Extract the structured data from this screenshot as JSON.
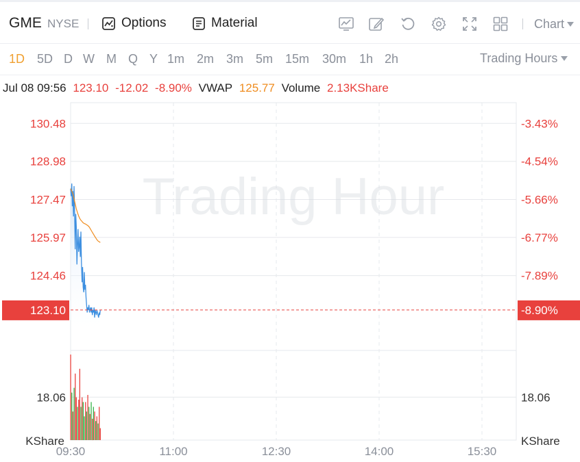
{
  "header": {
    "symbol": "GME",
    "exchange": "NYSE",
    "options_label": "Options",
    "material_label": "Material",
    "chart_menu_label": "Chart",
    "icons": [
      "chart-overlay-icon",
      "draw-icon",
      "refresh-icon",
      "settings-icon",
      "fullscreen-icon",
      "layout-grid-icon"
    ]
  },
  "periods": {
    "active": "1D",
    "items": [
      "1D",
      "5D",
      "D",
      "W",
      "M",
      "Q",
      "Y",
      "1m",
      "2m",
      "3m",
      "5m",
      "15m",
      "30m",
      "1h",
      "2h"
    ],
    "hours_label": "Trading Hours"
  },
  "info_line": {
    "datetime": "Jul 08 09:56",
    "price": "123.10",
    "change": "-12.02",
    "change_pct": "-8.90%",
    "vwap_label": "VWAP",
    "vwap_value": "125.77",
    "volume_label": "Volume",
    "volume_value": "2.13KShare"
  },
  "colors": {
    "up": "#e8413d",
    "down": "#35b44a",
    "price_line": "#3d8fe0",
    "vwap_line": "#ef8c1f",
    "active_tab": "#f0a030",
    "grid": "#e6e8ec"
  },
  "chart_data": {
    "type": "line",
    "watermark": "Trading Hour",
    "x_ticks": [
      "09:30",
      "11:00",
      "12:30",
      "14:00",
      "15:30"
    ],
    "price_axis": {
      "ticks": [
        "130.48",
        "128.98",
        "127.47",
        "125.97",
        "124.46"
      ],
      "current": "123.10",
      "range": [
        121.5,
        131.3
      ]
    },
    "pct_axis": {
      "ticks": [
        "-3.43%",
        "-4.54%",
        "-5.66%",
        "-6.77%",
        "-7.89%"
      ],
      "current": "-8.90%"
    },
    "volume_axis": {
      "tick": "18.06",
      "unit": "KShare",
      "max": 36
    },
    "series": [
      {
        "name": "Price",
        "x": [
          0,
          0.5,
          1,
          1.5,
          2,
          2.5,
          3,
          3.5,
          4,
          4.5,
          5,
          5.5,
          6,
          6.5,
          7,
          7.5,
          8,
          8.5,
          9,
          9.5,
          10,
          10.5,
          11,
          11.5,
          12,
          12.5,
          13,
          13.5,
          14,
          14.5,
          15,
          15.5,
          16,
          16.5,
          17,
          17.5,
          18,
          18.5,
          19,
          19.5,
          20,
          20.5,
          21,
          21.5,
          22,
          22.5,
          23,
          23.5,
          24,
          24.5,
          25,
          25.5,
          26
        ],
        "values": [
          127.9,
          127.6,
          128.1,
          127.2,
          127.8,
          126.8,
          128.0,
          127.0,
          125.5,
          126.9,
          126.4,
          124.9,
          125.7,
          126.3,
          125.4,
          125.6,
          126.0,
          125.2,
          126.2,
          125.0,
          124.2,
          124.8,
          124.0,
          123.8,
          124.6,
          123.9,
          124.1,
          123.6,
          123.3,
          123.0,
          123.2,
          123.1,
          123.3,
          123.0,
          123.1,
          123.2,
          123.0,
          123.2,
          122.9,
          123.1,
          123.0,
          123.2,
          122.8,
          123.1,
          123.0,
          122.9,
          123.1,
          123.0,
          122.9,
          122.8,
          123.0,
          122.9,
          123.1
        ]
      },
      {
        "name": "VWAP",
        "x": [
          0,
          1,
          2,
          3,
          4,
          5,
          6,
          7,
          8,
          9,
          10,
          11,
          12,
          13,
          14,
          15,
          16,
          17,
          18,
          19,
          20,
          21,
          22,
          23,
          24,
          25,
          26
        ],
        "values": [
          127.9,
          127.8,
          127.7,
          127.5,
          127.3,
          127.1,
          126.95,
          126.82,
          126.72,
          126.65,
          126.6,
          126.55,
          126.52,
          126.5,
          126.47,
          126.44,
          126.4,
          126.33,
          126.25,
          126.17,
          126.1,
          126.02,
          125.95,
          125.88,
          125.83,
          125.8,
          125.77
        ]
      }
    ],
    "volume": {
      "x": [
        0,
        1,
        2,
        3,
        4,
        5,
        6,
        7,
        8,
        9,
        10,
        11,
        12,
        13,
        14,
        15,
        16,
        17,
        18,
        19,
        20,
        21,
        22,
        23,
        24,
        25,
        26
      ],
      "values": [
        36,
        20,
        12,
        22,
        28,
        18,
        14,
        17,
        30,
        14,
        18,
        16,
        10,
        16,
        12,
        19,
        14,
        11,
        16,
        9,
        14,
        12,
        8,
        10,
        7,
        14,
        5
      ],
      "up": [
        true,
        false,
        true,
        false,
        true,
        true,
        false,
        true,
        true,
        false,
        true,
        false,
        false,
        true,
        false,
        true,
        false,
        true,
        false,
        true,
        false,
        true,
        false,
        true,
        false,
        true,
        true
      ]
    },
    "x_domain_minutes": [
      0,
      390
    ],
    "grid": true
  }
}
